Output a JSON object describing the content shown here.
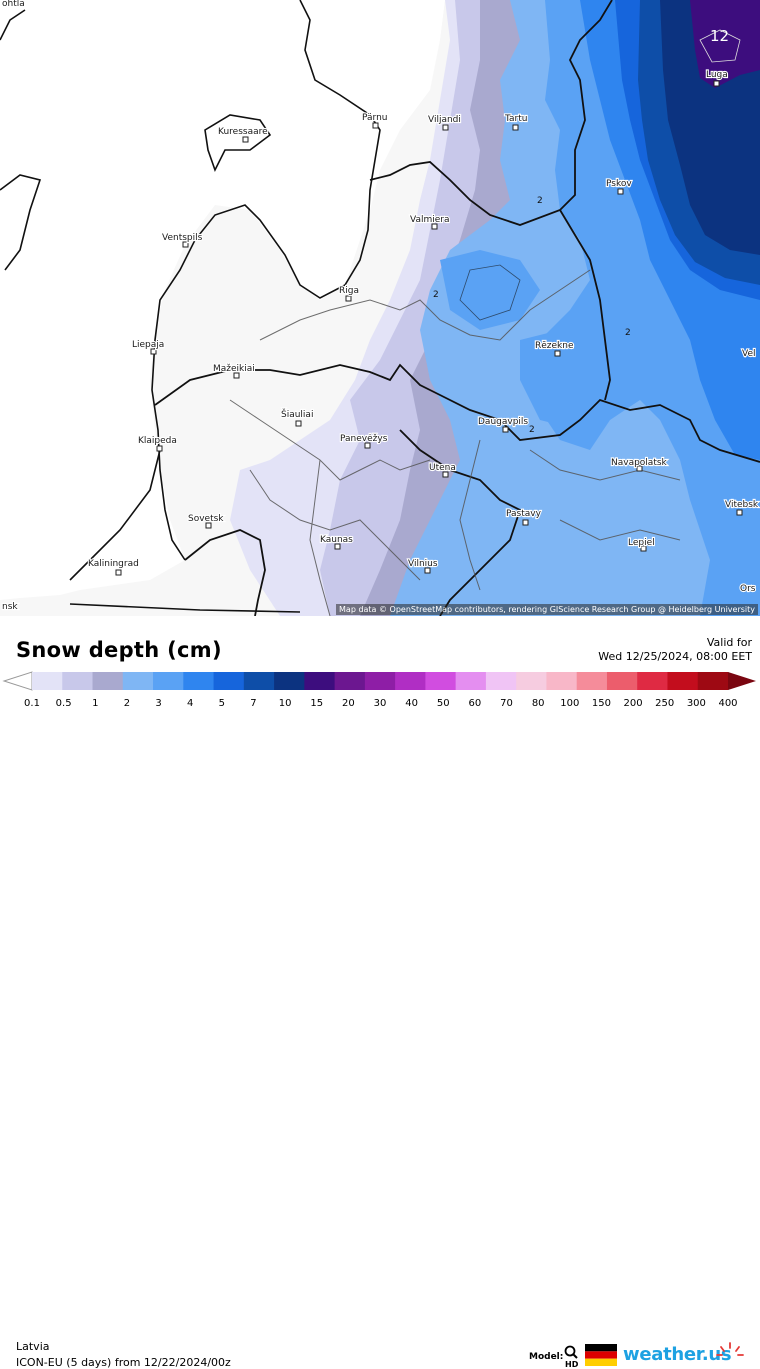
{
  "map": {
    "attribution": "Map data © OpenStreetMap contributors, rendering GIScience Research Group @ Heidelberg University",
    "cities": [
      {
        "name": "Kuressaare"
      },
      {
        "name": "Pärnu"
      },
      {
        "name": "Viljandi"
      },
      {
        "name": "Tartu"
      },
      {
        "name": "Pskov"
      },
      {
        "name": "Luga"
      },
      {
        "name": "Valmiera"
      },
      {
        "name": "Ventspils"
      },
      {
        "name": "Riga"
      },
      {
        "name": "Liepaja"
      },
      {
        "name": "Mažeikiai"
      },
      {
        "name": "Rēzekne"
      },
      {
        "name": "Šiauliai"
      },
      {
        "name": "Klaipeda"
      },
      {
        "name": "Panevėžys"
      },
      {
        "name": "Daugavpils"
      },
      {
        "name": "Navapolatsk"
      },
      {
        "name": "Utena"
      },
      {
        "name": "Sovetsk"
      },
      {
        "name": "Pastavy"
      },
      {
        "name": "Kaunas"
      },
      {
        "name": "Lepiel"
      },
      {
        "name": "Kaliningrad"
      },
      {
        "name": "Vilnius"
      },
      {
        "name": "Vitebsk"
      },
      {
        "name": "Vel"
      },
      {
        "name": "Ors"
      },
      {
        "name": "ohtla"
      },
      {
        "name": "nsk"
      }
    ],
    "contour_labels": [
      "12",
      "2",
      "2",
      "2",
      "2"
    ]
  },
  "legend": {
    "title": "Snow depth (cm)",
    "valid_for_label": "Valid for",
    "valid_time": "Wed 12/25/2024, 08:00 EET",
    "ticks": [
      "0.1",
      "0.5",
      "1",
      "2",
      "3",
      "4",
      "5",
      "7",
      "10",
      "15",
      "20",
      "30",
      "40",
      "50",
      "60",
      "70",
      "80",
      "100",
      "150",
      "200",
      "250",
      "300",
      "400"
    ],
    "colors": [
      "#e3e3f7",
      "#c8c8ea",
      "#a9a9cf",
      "#7fb6f4",
      "#5aa2f4",
      "#2f85ef",
      "#1665dc",
      "#0e4ea8",
      "#0c3380",
      "#3d0d7e",
      "#6c1790",
      "#8e1ea6",
      "#b02ec4",
      "#d14de0",
      "#e48ef0",
      "#f0c4f5",
      "#f6cce0",
      "#f8b7c8",
      "#f58c9a",
      "#ec5d6c",
      "#df2a43",
      "#c30d1d",
      "#9e0913",
      "#7a0610"
    ]
  },
  "footer": {
    "region": "Latvia",
    "model_run": "ICON-EU (5 days) from  12/22/2024/00z",
    "model_label": "Model:",
    "brand": "weather.us"
  }
}
